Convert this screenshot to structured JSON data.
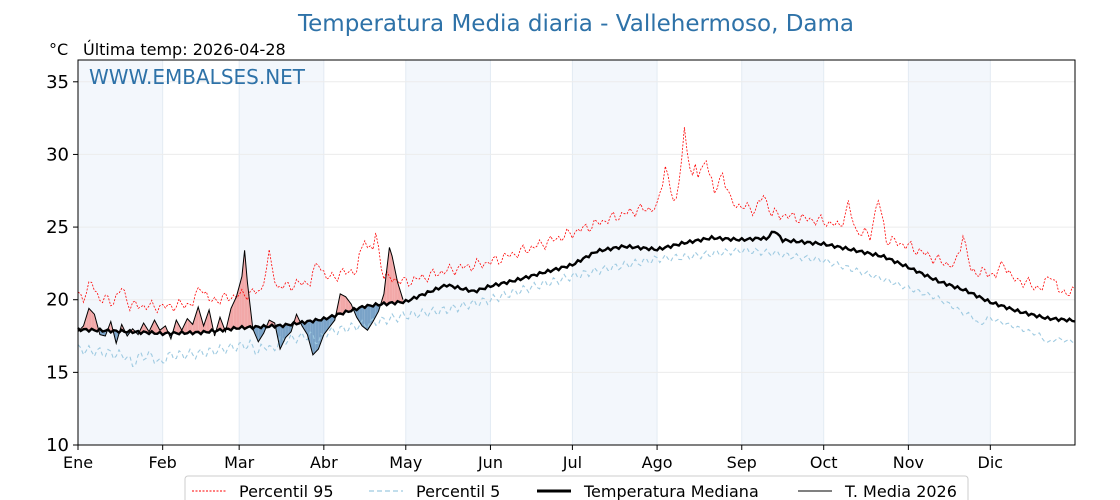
{
  "chart_data": {
    "type": "line",
    "title": "Temperatura Media diaria - Vallehermoso, Dama",
    "unit_label": "°C",
    "subtitle": "Última temp: 2026-04-28",
    "watermark": "WWW.EMBALSES.NET",
    "ylim": [
      10,
      36.5
    ],
    "xlim": [
      0,
      365
    ],
    "yticks": [
      10,
      15,
      20,
      25,
      30,
      35
    ],
    "months": [
      {
        "label": "Ene",
        "start": 0
      },
      {
        "label": "Feb",
        "start": 31
      },
      {
        "label": "Mar",
        "start": 59
      },
      {
        "label": "Abr",
        "start": 90
      },
      {
        "label": "May",
        "start": 120
      },
      {
        "label": "Jun",
        "start": 151
      },
      {
        "label": "Jul",
        "start": 181
      },
      {
        "label": "Ago",
        "start": 212
      },
      {
        "label": "Sep",
        "start": 243
      },
      {
        "label": "Oct",
        "start": 273
      },
      {
        "label": "Nov",
        "start": 304
      },
      {
        "label": "Dic",
        "start": 334
      }
    ],
    "shaded_month_bands": [
      {
        "start": 0,
        "end": 31
      },
      {
        "start": 59,
        "end": 90
      },
      {
        "start": 120,
        "end": 151
      },
      {
        "start": 181,
        "end": 212
      },
      {
        "start": 243,
        "end": 273
      },
      {
        "start": 304,
        "end": 334
      }
    ],
    "series": [
      {
        "name": "Percentil 95",
        "color": "#ff0000",
        "style": "dotted",
        "keypoints": [
          [
            0,
            20.3
          ],
          [
            10,
            20.0
          ],
          [
            20,
            19.6
          ],
          [
            31,
            19.5
          ],
          [
            45,
            19.8
          ],
          [
            59,
            20.3
          ],
          [
            75,
            20.9
          ],
          [
            90,
            21.4
          ],
          [
            100,
            22.0
          ],
          [
            110,
            21.7
          ],
          [
            120,
            21.2
          ],
          [
            135,
            22.0
          ],
          [
            151,
            22.6
          ],
          [
            165,
            23.5
          ],
          [
            181,
            24.6
          ],
          [
            195,
            25.6
          ],
          [
            205,
            26.2
          ],
          [
            212,
            26.3
          ],
          [
            222,
            27.0
          ],
          [
            232,
            27.3
          ],
          [
            243,
            26.4
          ],
          [
            255,
            25.9
          ],
          [
            265,
            25.6
          ],
          [
            273,
            25.4
          ],
          [
            285,
            24.7
          ],
          [
            295,
            24.2
          ],
          [
            304,
            23.7
          ],
          [
            315,
            22.7
          ],
          [
            325,
            22.0
          ],
          [
            334,
            21.8
          ],
          [
            345,
            21.3
          ],
          [
            355,
            20.6
          ],
          [
            365,
            20.5
          ]
        ],
        "spikes": [
          [
            5,
            1.0
          ],
          [
            16,
            1.0
          ],
          [
            45,
            1.2
          ],
          [
            70,
            2.3
          ],
          [
            88,
            1.3
          ],
          [
            105,
            2.6
          ],
          [
            109,
            2.7
          ],
          [
            215,
            2.7
          ],
          [
            222,
            4.5
          ],
          [
            226,
            2.2
          ],
          [
            230,
            2.6
          ],
          [
            236,
            1.8
          ],
          [
            251,
            1.1
          ],
          [
            282,
            1.6
          ],
          [
            293,
            2.6
          ],
          [
            324,
            2.4
          ],
          [
            339,
            1.0
          ],
          [
            356,
            1.3
          ]
        ]
      },
      {
        "name": "Percentil 5",
        "color": "#9ecae1",
        "style": "dashed",
        "keypoints": [
          [
            0,
            16.6
          ],
          [
            15,
            16.2
          ],
          [
            31,
            16.1
          ],
          [
            45,
            16.3
          ],
          [
            59,
            16.8
          ],
          [
            75,
            17.2
          ],
          [
            90,
            17.7
          ],
          [
            105,
            18.3
          ],
          [
            120,
            18.9
          ],
          [
            135,
            19.3
          ],
          [
            151,
            20.0
          ],
          [
            165,
            20.8
          ],
          [
            181,
            21.6
          ],
          [
            195,
            22.2
          ],
          [
            212,
            22.8
          ],
          [
            225,
            23.0
          ],
          [
            243,
            23.4
          ],
          [
            255,
            23.2
          ],
          [
            265,
            22.9
          ],
          [
            273,
            22.7
          ],
          [
            285,
            22.0
          ],
          [
            295,
            21.4
          ],
          [
            304,
            20.8
          ],
          [
            315,
            20.1
          ],
          [
            325,
            19.0
          ],
          [
            334,
            18.7
          ],
          [
            345,
            18.0
          ],
          [
            355,
            17.4
          ],
          [
            365,
            17.1
          ]
        ],
        "spikes": [
          [
            20,
            -0.6
          ],
          [
            30,
            -0.5
          ],
          [
            66,
            -0.6
          ],
          [
            71,
            -0.6
          ],
          [
            88,
            -0.5
          ],
          [
            330,
            -0.6
          ],
          [
            355,
            -0.4
          ]
        ]
      },
      {
        "name": "Temperatura Mediana",
        "color": "#000000",
        "style": "solid-thick",
        "keypoints": [
          [
            0,
            18.0
          ],
          [
            15,
            17.8
          ],
          [
            31,
            17.6
          ],
          [
            45,
            17.7
          ],
          [
            59,
            18.1
          ],
          [
            75,
            18.3
          ],
          [
            90,
            18.7
          ],
          [
            105,
            19.5
          ],
          [
            120,
            19.8
          ],
          [
            130,
            20.6
          ],
          [
            135,
            21.0
          ],
          [
            145,
            20.6
          ],
          [
            151,
            21.0
          ],
          [
            160,
            21.4
          ],
          [
            170,
            21.9
          ],
          [
            181,
            22.4
          ],
          [
            190,
            23.3
          ],
          [
            200,
            23.6
          ],
          [
            212,
            23.4
          ],
          [
            222,
            23.9
          ],
          [
            232,
            24.3
          ],
          [
            243,
            24.2
          ],
          [
            250,
            24.3
          ],
          [
            260,
            24.1
          ],
          [
            273,
            23.8
          ],
          [
            285,
            23.3
          ],
          [
            295,
            22.9
          ],
          [
            304,
            22.2
          ],
          [
            315,
            21.3
          ],
          [
            325,
            20.7
          ],
          [
            334,
            19.9
          ],
          [
            345,
            19.2
          ],
          [
            355,
            18.7
          ],
          [
            365,
            18.5
          ]
        ],
        "spikes": [
          [
            255,
            0.6
          ]
        ]
      },
      {
        "name": "T. Media 2026",
        "color": "#000000",
        "style": "solid-thin",
        "points": [
          [
            0,
            17.8
          ],
          [
            2,
            18.2
          ],
          [
            4,
            19.4
          ],
          [
            6,
            19.0
          ],
          [
            8,
            17.6
          ],
          [
            10,
            17.5
          ],
          [
            12,
            18.5
          ],
          [
            14,
            17.0
          ],
          [
            16,
            18.3
          ],
          [
            18,
            17.5
          ],
          [
            20,
            18.0
          ],
          [
            22,
            17.6
          ],
          [
            24,
            18.4
          ],
          [
            26,
            17.8
          ],
          [
            28,
            18.6
          ],
          [
            30,
            17.9
          ],
          [
            32,
            18.2
          ],
          [
            34,
            17.3
          ],
          [
            36,
            18.6
          ],
          [
            38,
            17.9
          ],
          [
            40,
            18.7
          ],
          [
            42,
            18.3
          ],
          [
            44,
            19.5
          ],
          [
            46,
            18.2
          ],
          [
            48,
            19.3
          ],
          [
            50,
            17.5
          ],
          [
            52,
            18.8
          ],
          [
            54,
            17.8
          ],
          [
            56,
            19.4
          ],
          [
            58,
            20.2
          ],
          [
            60,
            21.6
          ],
          [
            61,
            23.4
          ],
          [
            62,
            21.2
          ],
          [
            64,
            18.0
          ],
          [
            66,
            17.1
          ],
          [
            68,
            17.7
          ],
          [
            70,
            18.6
          ],
          [
            72,
            18.4
          ],
          [
            74,
            16.6
          ],
          [
            76,
            17.4
          ],
          [
            78,
            17.8
          ],
          [
            80,
            19.0
          ],
          [
            82,
            18.2
          ],
          [
            84,
            17.6
          ],
          [
            86,
            16.2
          ],
          [
            88,
            16.6
          ],
          [
            90,
            17.6
          ],
          [
            92,
            18.1
          ],
          [
            94,
            18.6
          ],
          [
            96,
            20.4
          ],
          [
            98,
            20.2
          ],
          [
            100,
            19.7
          ],
          [
            102,
            18.8
          ],
          [
            104,
            18.2
          ],
          [
            106,
            17.9
          ],
          [
            108,
            18.5
          ],
          [
            110,
            19.2
          ],
          [
            112,
            20.4
          ],
          [
            114,
            23.6
          ],
          [
            115,
            23.0
          ],
          [
            117,
            21.2
          ],
          [
            119,
            20.0
          ]
        ]
      }
    ]
  },
  "legend": [
    {
      "label": "Percentil 95"
    },
    {
      "label": "Percentil 5"
    },
    {
      "label": "Temperatura Mediana"
    },
    {
      "label": "T. Media 2026"
    }
  ]
}
